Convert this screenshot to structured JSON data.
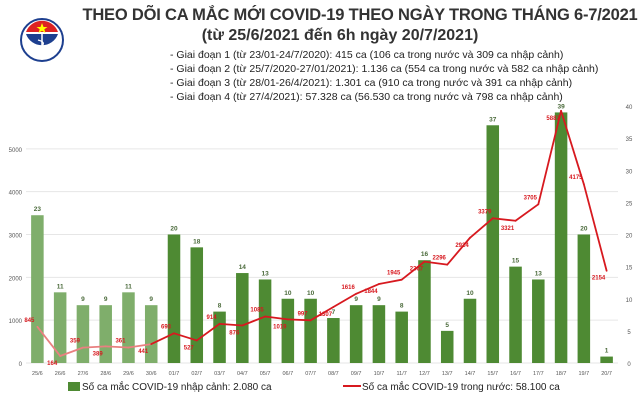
{
  "header": {
    "title": "THEO DÕI CA MẮC MỚI COVID-19 THEO NGÀY TRONG THÁNG 6-7/2021",
    "subtitle": "(từ 25/6/2021 đến 6h ngày 20/7/2021)",
    "notes": [
      "- Giai đoạn 1 (từ 23/01-24/7/2020): 415 ca (106 ca trong nước và 309 ca nhập cảnh)",
      "- Giai đoạn 2 (từ 25/7/2020-27/01/2021): 1.136 ca (554 ca trong nước và 582 ca nhập cảnh)",
      "- Giai đoạn 3 (từ 28/01-26/4/2021): 1.301 ca (910 ca trong nước và 391 ca nhập cảnh)",
      "- Giai đoạn 4 (từ 27/4/2021): 57.328 ca (56.530 ca trong nước và 798 ca nhập cảnh)"
    ],
    "logo_text": "BỘ Y TẾ MINISTRY OF HEALTH"
  },
  "chart_data": {
    "type": "bar+line",
    "categories": [
      "25/6",
      "26/6",
      "27/6",
      "28/6",
      "29/6",
      "30/6",
      "01/7",
      "02/7",
      "03/7",
      "04/7",
      "05/7",
      "06/7",
      "07/7",
      "08/7",
      "09/7",
      "10/7",
      "11/7",
      "12/7",
      "13/7",
      "14/7",
      "15/7",
      "16/7",
      "17/7",
      "18/7",
      "19/7",
      "20/7"
    ],
    "series": [
      {
        "name": "Số ca mắc COVID-19 nhập cảnh: 2.080 ca",
        "type": "bar",
        "axis": "right",
        "values": [
          23,
          11,
          9,
          9,
          11,
          9,
          20,
          18,
          8,
          14,
          13,
          10,
          10,
          7,
          9,
          9,
          8,
          16,
          5,
          10,
          37,
          15,
          13,
          39,
          20,
          1
        ],
        "color": "#4e8a33",
        "color_june": "#7fae6b"
      },
      {
        "name": "Số ca mắc COVID-19 trong nước: 58.100 ca",
        "type": "line",
        "axis": "left",
        "values": [
          845,
          164,
          359,
          389,
          361,
          441,
          693,
          527,
          914,
          876,
          1085,
          1019,
          997,
          1307,
          1616,
          1844,
          1945,
          2367,
          2296,
          2924,
          3379,
          3321,
          3705,
          5887,
          4175,
          2154
        ],
        "color": "#d7191f",
        "color_june": "#e98080"
      }
    ],
    "left_axis": {
      "range": [
        0,
        6000
      ],
      "ticks": [
        0,
        1000,
        2000,
        3000,
        4000,
        5000
      ]
    },
    "right_axis": {
      "range": [
        0,
        40
      ],
      "ticks": [
        0,
        5,
        10,
        15,
        20,
        25,
        30,
        35,
        40
      ]
    },
    "grid": true,
    "legend": "bottom"
  }
}
